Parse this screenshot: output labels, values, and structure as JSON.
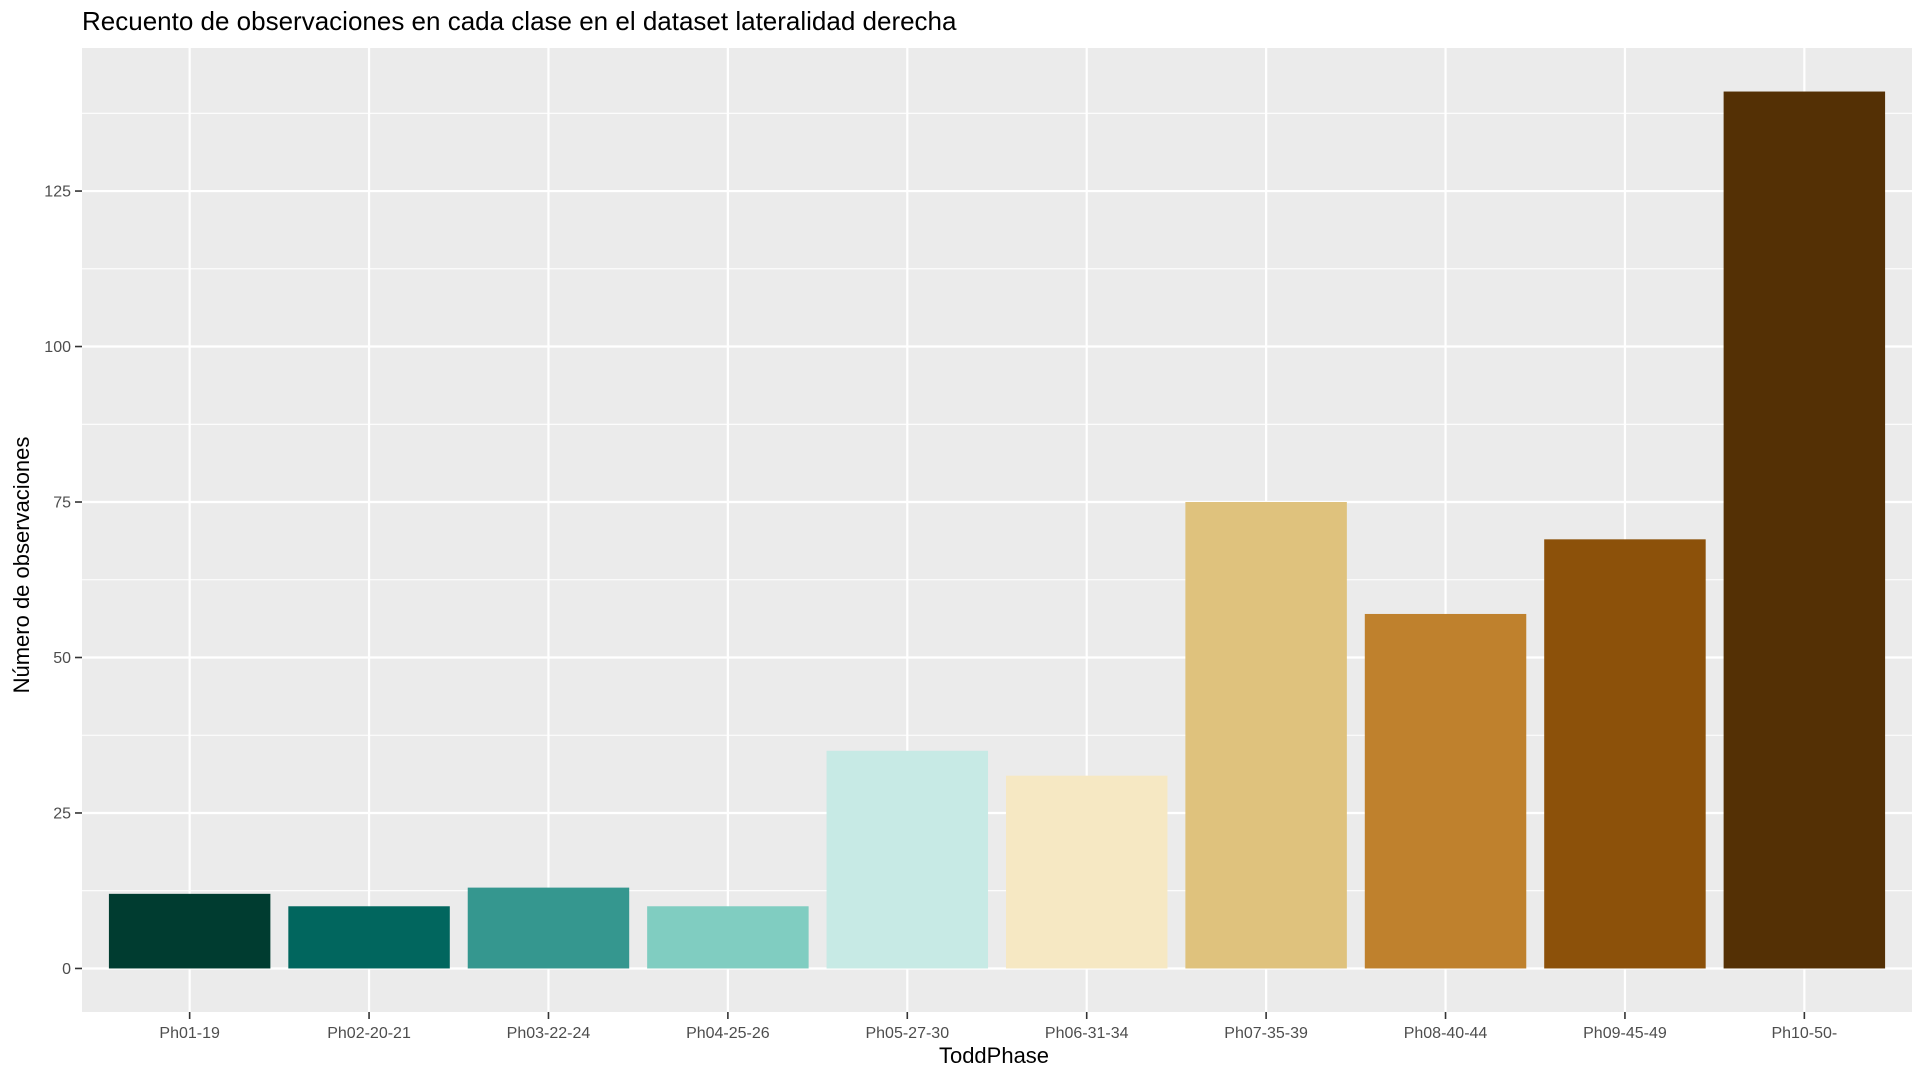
{
  "chart_data": {
    "type": "bar",
    "title": "Recuento de observaciones en cada clase en el dataset lateralidad derecha",
    "xlabel": "ToddPhase",
    "ylabel": "Número de observaciones",
    "categories": [
      "Ph01-19",
      "Ph02-20-21",
      "Ph03-22-24",
      "Ph04-25-26",
      "Ph05-27-30",
      "Ph06-31-34",
      "Ph07-35-39",
      "Ph08-40-44",
      "Ph09-45-49",
      "Ph10-50-"
    ],
    "values": [
      12,
      10,
      13,
      10,
      35,
      31,
      75,
      57,
      69,
      141
    ],
    "colors": [
      "#003C30",
      "#01665E",
      "#35978F",
      "#80CDC1",
      "#C7EAE5",
      "#F6E8C3",
      "#DFC27D",
      "#BF812D",
      "#8C510A",
      "#543005"
    ],
    "ylim": [
      -7,
      148
    ],
    "yticks": [
      0,
      25,
      50,
      75,
      100,
      125
    ],
    "grid": true,
    "panel_background": "#EBEBEB",
    "grid_color": "#FFFFFF",
    "legend": "none"
  }
}
